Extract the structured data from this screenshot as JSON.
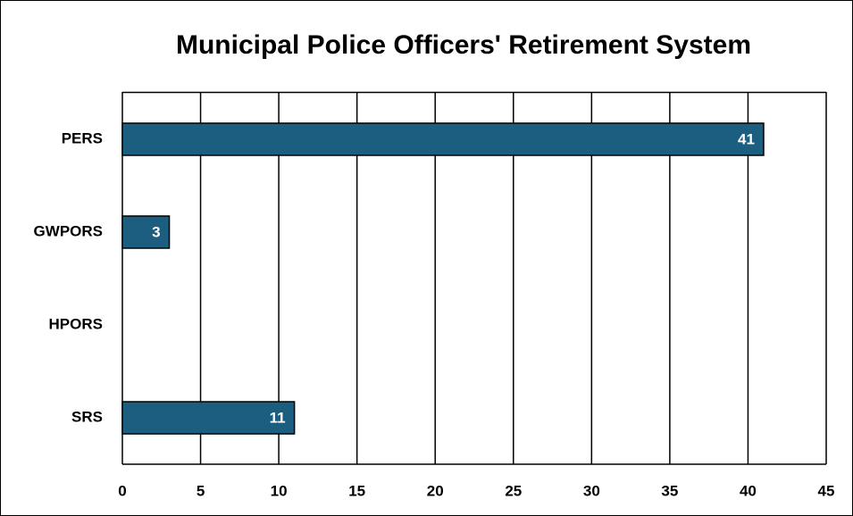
{
  "chart_data": {
    "type": "bar",
    "orientation": "horizontal",
    "title": "Municipal Police Officers' Retirement System",
    "categories": [
      "PERS",
      "GWPORS",
      "HPORS",
      "SRS"
    ],
    "values": [
      41,
      3,
      null,
      11
    ],
    "color": "#1b5e80",
    "xlim": [
      0,
      45
    ],
    "xticks": [
      0,
      5,
      10,
      15,
      20,
      25,
      30,
      35,
      40,
      45
    ],
    "grid": true
  }
}
